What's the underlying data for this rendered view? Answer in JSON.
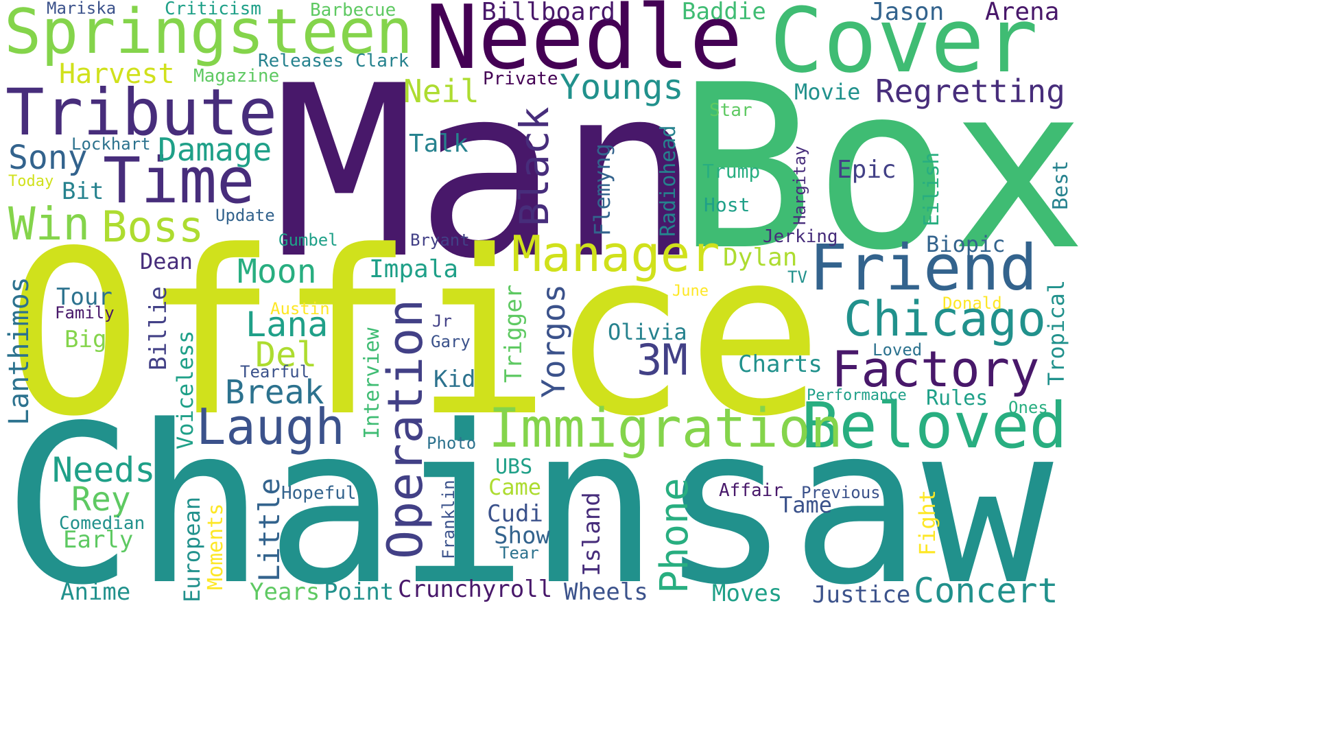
{
  "word_cloud": {
    "background": "#ffffff",
    "palette": [
      "#440154",
      "#48186a",
      "#472d7b",
      "#424086",
      "#3b528b",
      "#33638d",
      "#2c728e",
      "#26828e",
      "#21918c",
      "#1fa088",
      "#28ae80",
      "#3fbc73",
      "#5ec962",
      "#84d44b",
      "#addc30",
      "#d0e11c",
      "#fde725"
    ],
    "words": [
      "Man",
      "Box",
      "Office",
      "Chainsaw",
      "Needle",
      "Cover",
      "Springsteen",
      "Tribute",
      "Time",
      "Black",
      "Friend",
      "Beloved",
      "Immigration",
      "Chicago",
      "Factory",
      "Manager",
      "Laugh",
      "Operation",
      "Phone",
      "Concert",
      "Regretting",
      "Youngs",
      "Boss",
      "Win",
      "Damage",
      "Sony",
      "3M",
      "Moon",
      "Lana",
      "Del",
      "Break",
      "Needs",
      "Rey",
      "Neil",
      "Harvest",
      "Billboard",
      "Jason",
      "Arena",
      "Baddie",
      "Mariska",
      "Criticism",
      "Barbecue",
      "Releases",
      "Clark",
      "Magazine",
      "Private",
      "Movie",
      "Star",
      "Lockhart",
      "Talk",
      "Trump",
      "Host",
      "Epic",
      "Eilish",
      "Best",
      "Hargitay",
      "Radiohead",
      "Flemyng",
      "Today",
      "Bit",
      "Update",
      "Gumbel",
      "Bryant",
      "Jerking",
      "Biopic",
      "Dean",
      "Dylan",
      "Impala",
      "TV",
      "June",
      "Tour",
      "Family",
      "Austin",
      "Jr",
      "Gary",
      "Olivia",
      "Donald",
      "Tropical",
      "Big",
      "Tearful",
      "Kid",
      "Charts",
      "Loved",
      "Performance",
      "Rules",
      "Ones",
      "Photo",
      "UBS",
      "Came",
      "Cudi",
      "Show",
      "Tear",
      "Affair",
      "Previous",
      "Tame",
      "Fight",
      "Hopeful",
      "Comedian",
      "Early",
      "Anime",
      "Years",
      "Point",
      "Crunchyroll",
      "Wheels",
      "Moves",
      "Justice",
      "Lanthimos",
      "Billie",
      "Voiceless",
      "Trigger",
      "Yorgos",
      "Interview",
      "Little",
      "European",
      "Moments",
      "Franklin",
      "Island"
    ]
  }
}
